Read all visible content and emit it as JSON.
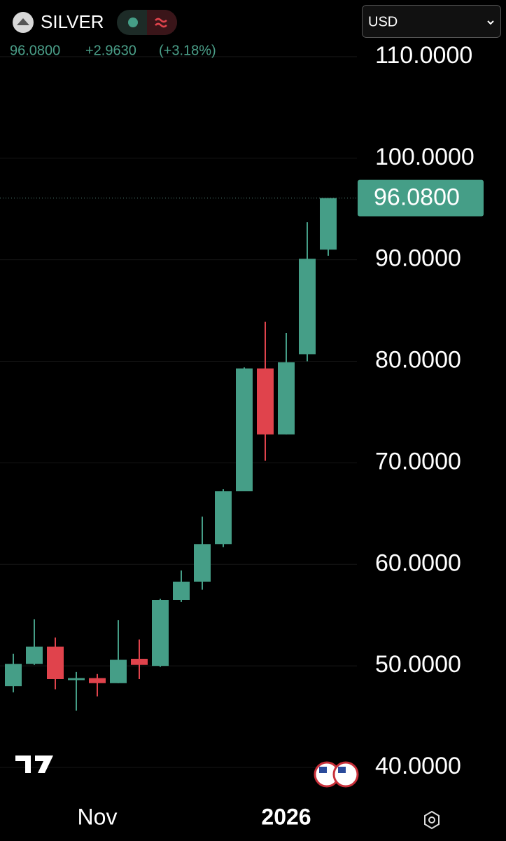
{
  "header": {
    "symbol": "SILVER",
    "price": "96.0800",
    "change": "+2.9630",
    "change_pct": "(+3.18%)",
    "currency": "USD"
  },
  "chart_data": {
    "type": "candlestick",
    "categories": [
      null,
      null,
      null,
      null,
      "Nov",
      null,
      null,
      null,
      null,
      null,
      null,
      null,
      null,
      "2026",
      null,
      null
    ],
    "series": [
      {
        "up_color": "#459e87",
        "down_color": "#e0434c",
        "open": [
          48.0,
          50.2,
          51.9,
          48.6,
          48.8,
          48.3,
          50.7,
          50.0,
          56.5,
          58.3,
          62.0,
          67.2,
          79.3,
          72.8,
          80.7,
          91.0
        ],
        "high": [
          51.2,
          54.6,
          52.8,
          49.4,
          49.2,
          54.5,
          52.6,
          56.6,
          59.4,
          64.7,
          67.4,
          79.4,
          83.9,
          82.8,
          93.7,
          96.08
        ],
        "low": [
          47.4,
          50.1,
          47.7,
          45.6,
          47.0,
          48.3,
          48.7,
          49.9,
          56.3,
          57.5,
          61.7,
          67.2,
          70.2,
          72.8,
          80.0,
          90.4
        ],
        "close": [
          50.2,
          51.9,
          48.7,
          48.8,
          48.3,
          50.6,
          50.1,
          56.5,
          58.3,
          62.0,
          67.2,
          79.3,
          72.8,
          79.9,
          90.1,
          96.08
        ]
      }
    ],
    "ylim": [
      37,
      115
    ],
    "yticks": [
      {
        "value": 40,
        "label": "40.0000"
      },
      {
        "value": 50,
        "label": "50.0000"
      },
      {
        "value": 60,
        "label": "60.0000"
      },
      {
        "value": 70,
        "label": "70.0000"
      },
      {
        "value": 80,
        "label": "80.0000"
      },
      {
        "value": 90,
        "label": "90.0000"
      },
      {
        "value": 100,
        "label": "100.0000"
      },
      {
        "value": 110,
        "label": "110.0000"
      }
    ],
    "last_price": {
      "value": 96.08,
      "label": "96.0800"
    },
    "grid": true
  }
}
